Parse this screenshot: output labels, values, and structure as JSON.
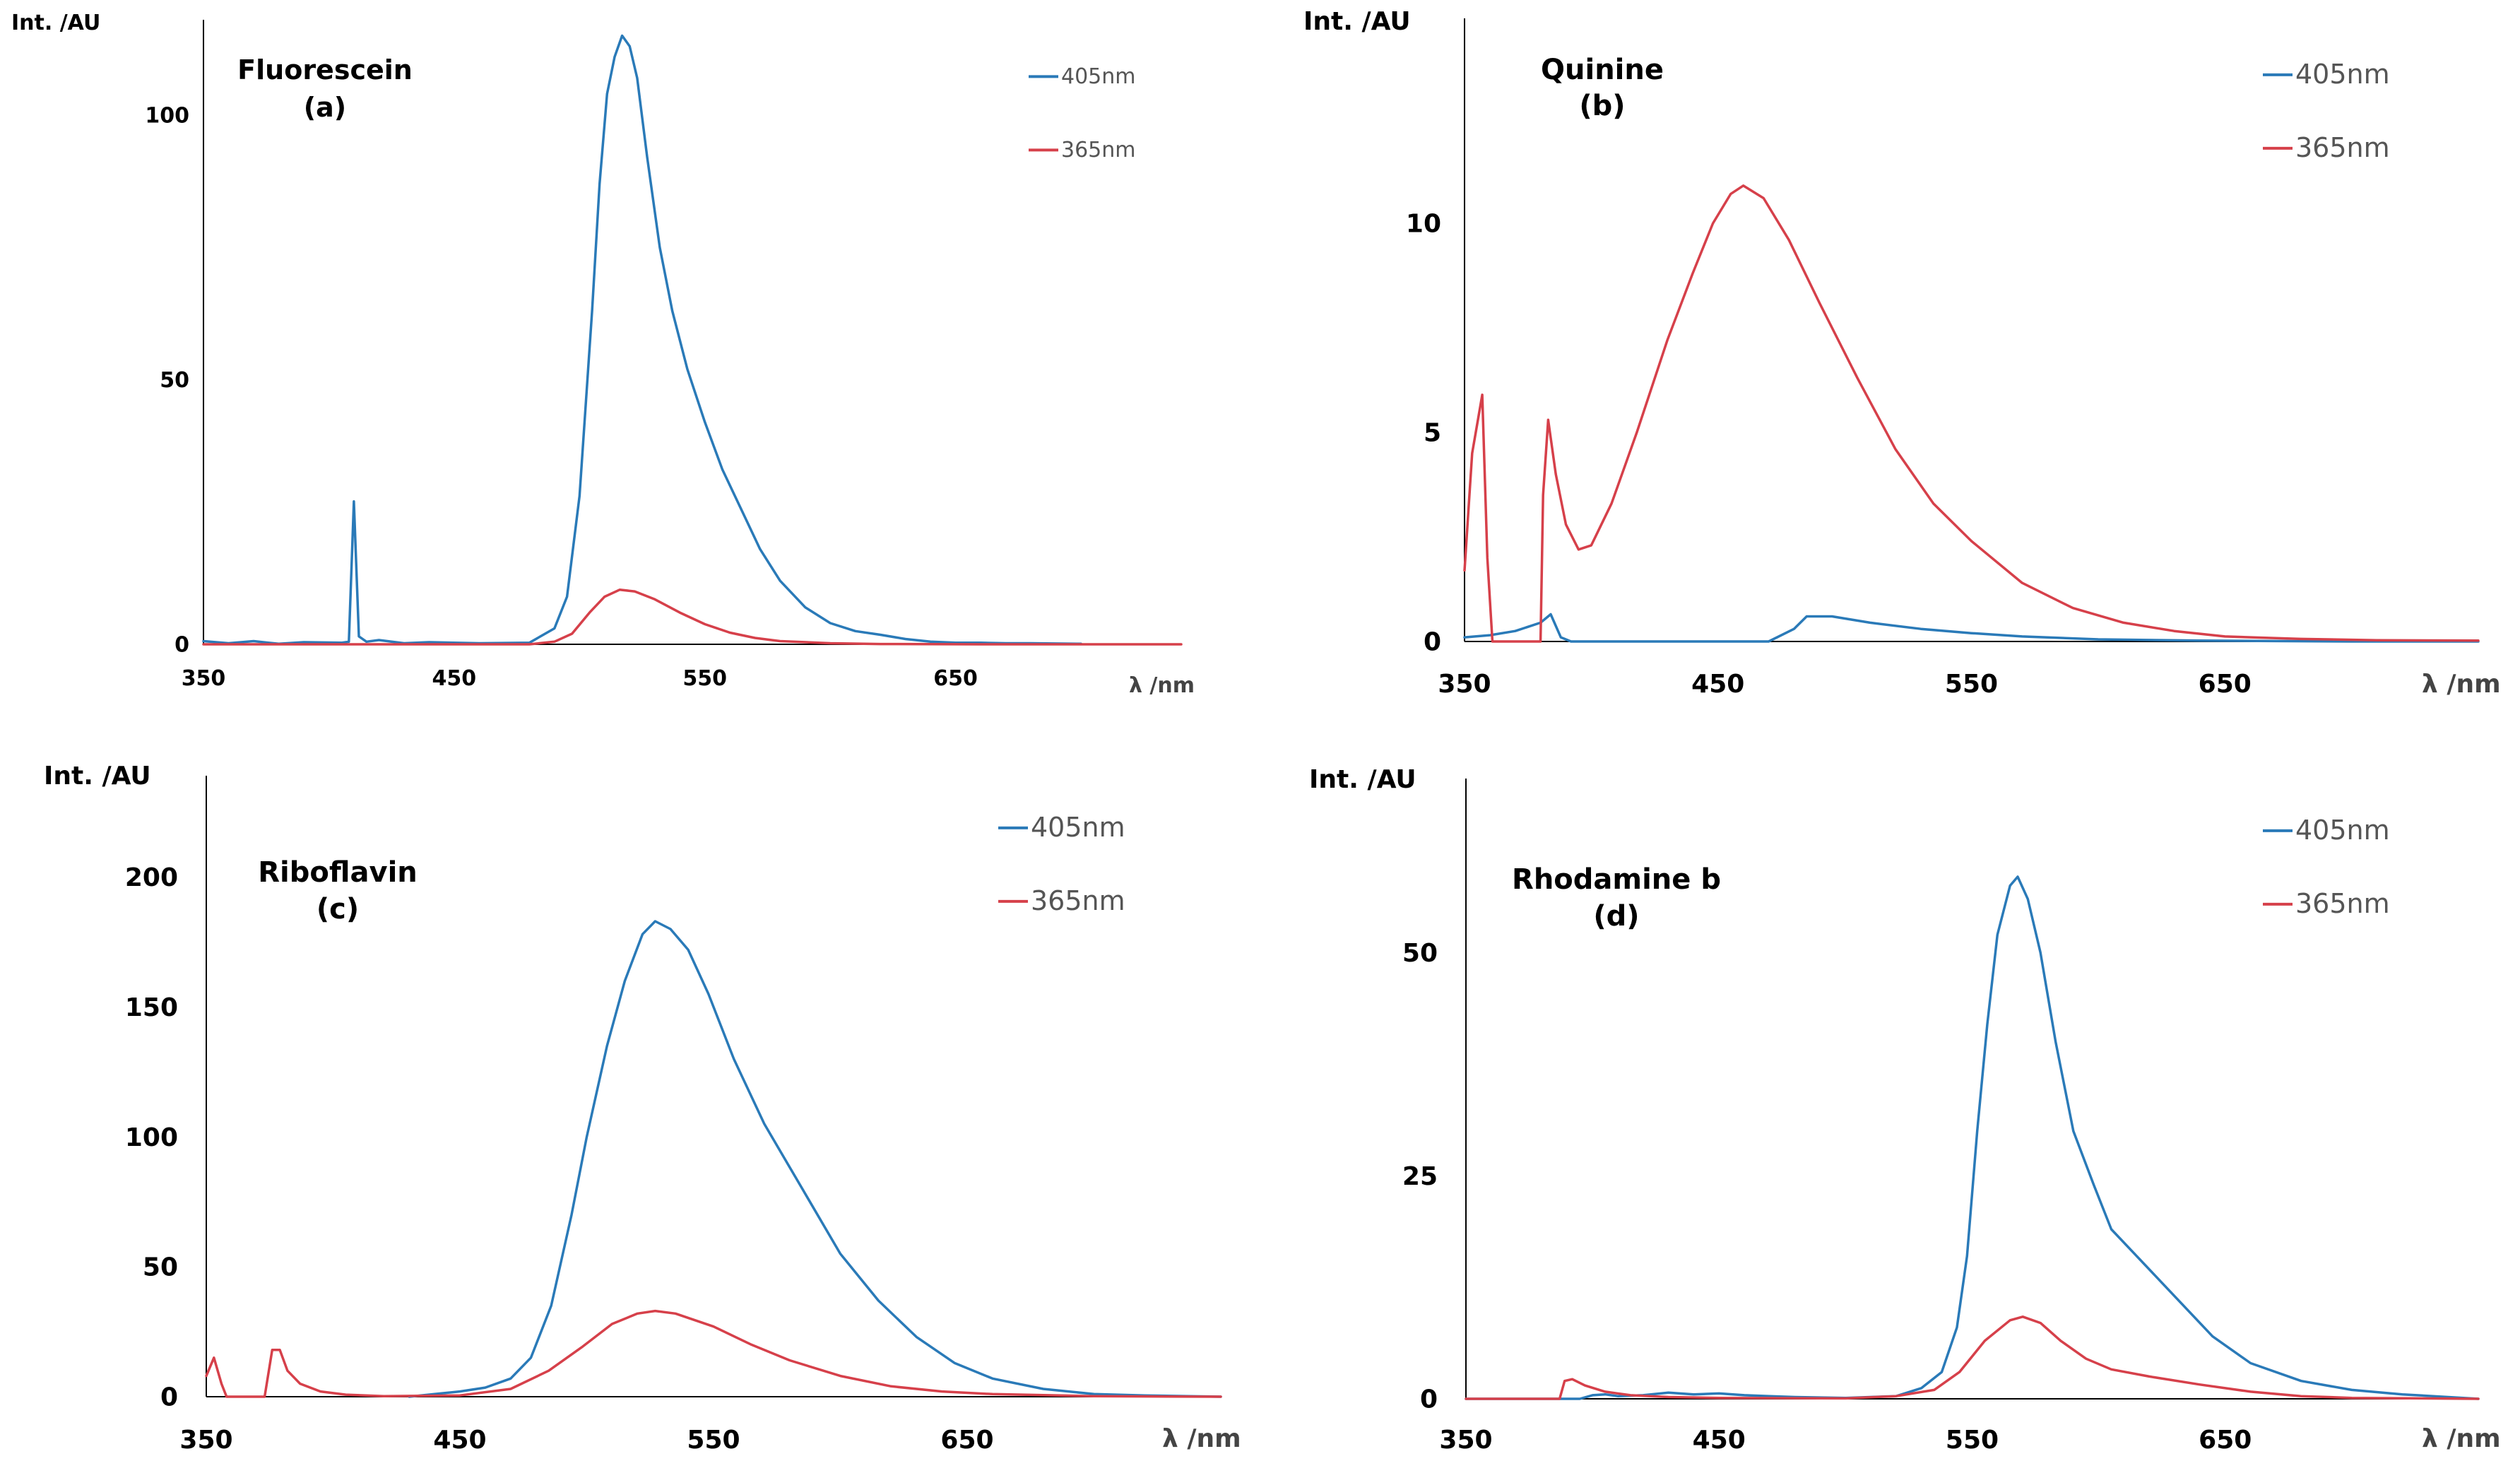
{
  "chart_data": [
    {
      "type": "line",
      "panel": "a",
      "title": "Fluorescein",
      "panel_label": "(a)",
      "ylabel": "Int. /AU",
      "xlabel": "λ /nm",
      "xlim": [
        350,
        740
      ],
      "ylim": [
        0,
        118
      ],
      "xticks": [
        350,
        450,
        550,
        650
      ],
      "yticks": [
        0,
        50,
        100
      ],
      "legend": {
        "placement": "top-right",
        "entries": [
          "405nm",
          "365nm"
        ]
      },
      "series": [
        {
          "name": "405nm",
          "color": "#2a7ab8",
          "points": [
            [
              350,
              0.6
            ],
            [
              360,
              0.2
            ],
            [
              370,
              0.6
            ],
            [
              380,
              0.1
            ],
            [
              390,
              0.4
            ],
            [
              405,
              0.3
            ],
            [
              408,
              0.5
            ],
            [
              410,
              27
            ],
            [
              412,
              1.5
            ],
            [
              415,
              0.5
            ],
            [
              420,
              0.8
            ],
            [
              430,
              0.2
            ],
            [
              440,
              0.4
            ],
            [
              460,
              0.2
            ],
            [
              480,
              0.3
            ],
            [
              490,
              3
            ],
            [
              495,
              9
            ],
            [
              500,
              28
            ],
            [
              505,
              63
            ],
            [
              508,
              87
            ],
            [
              511,
              104
            ],
            [
              514,
              111
            ],
            [
              517,
              115
            ],
            [
              520,
              113
            ],
            [
              523,
              107
            ],
            [
              527,
              92
            ],
            [
              532,
              75
            ],
            [
              537,
              63
            ],
            [
              543,
              52
            ],
            [
              550,
              42
            ],
            [
              557,
              33
            ],
            [
              565,
              25
            ],
            [
              572,
              18
            ],
            [
              580,
              12
            ],
            [
              590,
              7
            ],
            [
              600,
              4
            ],
            [
              610,
              2.5
            ],
            [
              620,
              1.8
            ],
            [
              630,
              1
            ],
            [
              640,
              0.5
            ],
            [
              650,
              0.3
            ],
            [
              660,
              0.3
            ],
            [
              670,
              0.2
            ],
            [
              680,
              0.2
            ],
            [
              700,
              0.1
            ]
          ]
        },
        {
          "name": "365nm",
          "color": "#d6404a",
          "points": [
            [
              350,
              0
            ],
            [
              480,
              0
            ],
            [
              490,
              0.5
            ],
            [
              497,
              2
            ],
            [
              504,
              6
            ],
            [
              510,
              9
            ],
            [
              516,
              10.3
            ],
            [
              522,
              10
            ],
            [
              530,
              8.5
            ],
            [
              540,
              6
            ],
            [
              550,
              3.8
            ],
            [
              560,
              2.2
            ],
            [
              570,
              1.2
            ],
            [
              580,
              0.6
            ],
            [
              600,
              0.2
            ],
            [
              620,
              0.05
            ],
            [
              660,
              0
            ],
            [
              740,
              0
            ]
          ]
        }
      ]
    },
    {
      "type": "line",
      "panel": "b",
      "title": "Quinine",
      "panel_label": "(b)",
      "ylabel": "Int. /AU",
      "xlabel": "λ /nm",
      "xlim": [
        350,
        750
      ],
      "ylim": [
        0,
        14.9
      ],
      "xticks": [
        350,
        450,
        550,
        650
      ],
      "yticks": [
        0,
        5,
        10
      ],
      "legend": {
        "placement": "top-right",
        "entries": [
          "405nm",
          "365nm"
        ]
      },
      "series": [
        {
          "name": "405nm",
          "color": "#2a7ab8",
          "points": [
            [
              350,
              0.1
            ],
            [
              360,
              0.15
            ],
            [
              370,
              0.25
            ],
            [
              375,
              0.35
            ],
            [
              380,
              0.45
            ],
            [
              384,
              0.65
            ],
            [
              388,
              0.1
            ],
            [
              392,
              0
            ],
            [
              470,
              0
            ],
            [
              480,
              0.3
            ],
            [
              485,
              0.6
            ],
            [
              495,
              0.6
            ],
            [
              510,
              0.45
            ],
            [
              530,
              0.3
            ],
            [
              550,
              0.2
            ],
            [
              570,
              0.12
            ],
            [
              600,
              0.05
            ],
            [
              640,
              0.02
            ],
            [
              700,
              0
            ],
            [
              750,
              0
            ]
          ]
        },
        {
          "name": "365nm",
          "color": "#d6404a",
          "points": [
            [
              350,
              1.7
            ],
            [
              353,
              4.5
            ],
            [
              357,
              5.9
            ],
            [
              359,
              2
            ],
            [
              361,
              0
            ],
            [
              380,
              0
            ],
            [
              381,
              3.5
            ],
            [
              383,
              5.3
            ],
            [
              386,
              4
            ],
            [
              390,
              2.8
            ],
            [
              395,
              2.2
            ],
            [
              400,
              2.3
            ],
            [
              408,
              3.3
            ],
            [
              418,
              5
            ],
            [
              430,
              7.2
            ],
            [
              440,
              8.8
            ],
            [
              448,
              10
            ],
            [
              455,
              10.7
            ],
            [
              460,
              10.9
            ],
            [
              468,
              10.6
            ],
            [
              478,
              9.6
            ],
            [
              490,
              8.1
            ],
            [
              505,
              6.3
            ],
            [
              520,
              4.6
            ],
            [
              535,
              3.3
            ],
            [
              550,
              2.4
            ],
            [
              570,
              1.4
            ],
            [
              590,
              0.8
            ],
            [
              610,
              0.45
            ],
            [
              630,
              0.25
            ],
            [
              650,
              0.12
            ],
            [
              680,
              0.06
            ],
            [
              710,
              0.03
            ],
            [
              750,
              0.02
            ]
          ]
        }
      ]
    },
    {
      "type": "line",
      "panel": "c",
      "title": "Riboflavin",
      "panel_label": "(c)",
      "ylabel": "Int. /AU",
      "xlabel": "λ /nm",
      "xlim": [
        350,
        750
      ],
      "ylim": [
        0,
        239
      ],
      "xticks": [
        350,
        450,
        550,
        650
      ],
      "yticks": [
        0,
        50,
        100,
        150,
        200
      ],
      "legend": {
        "placement": "top-right",
        "entries": [
          "405nm",
          "365nm"
        ]
      },
      "series": [
        {
          "name": "405nm",
          "color": "#2a7ab8",
          "points": [
            [
              430,
              0
            ],
            [
              440,
              1
            ],
            [
              450,
              2
            ],
            [
              460,
              3.5
            ],
            [
              470,
              7
            ],
            [
              478,
              15
            ],
            [
              486,
              35
            ],
            [
              494,
              70
            ],
            [
              500,
              100
            ],
            [
              508,
              135
            ],
            [
              515,
              160
            ],
            [
              522,
              178
            ],
            [
              527,
              183
            ],
            [
              533,
              180
            ],
            [
              540,
              172
            ],
            [
              548,
              155
            ],
            [
              558,
              130
            ],
            [
              570,
              105
            ],
            [
              585,
              80
            ],
            [
              600,
              55
            ],
            [
              615,
              37
            ],
            [
              630,
              23
            ],
            [
              645,
              13
            ],
            [
              660,
              7
            ],
            [
              680,
              3
            ],
            [
              700,
              1
            ],
            [
              720,
              0.5
            ],
            [
              750,
              0
            ]
          ]
        },
        {
          "name": "365nm",
          "color": "#d6404a",
          "points": [
            [
              350,
              8
            ],
            [
              353,
              15
            ],
            [
              356,
              5
            ],
            [
              358,
              0
            ],
            [
              373,
              0
            ],
            [
              376,
              18
            ],
            [
              379,
              18
            ],
            [
              382,
              10
            ],
            [
              387,
              5
            ],
            [
              395,
              2
            ],
            [
              405,
              0.8
            ],
            [
              420,
              0.2
            ],
            [
              450,
              0.5
            ],
            [
              470,
              3
            ],
            [
              485,
              10
            ],
            [
              498,
              19
            ],
            [
              510,
              28
            ],
            [
              520,
              32
            ],
            [
              527,
              33
            ],
            [
              535,
              32
            ],
            [
              550,
              27
            ],
            [
              565,
              20
            ],
            [
              580,
              14
            ],
            [
              600,
              8
            ],
            [
              620,
              4
            ],
            [
              640,
              2
            ],
            [
              660,
              1
            ],
            [
              700,
              0.2
            ],
            [
              750,
              0
            ]
          ]
        }
      ]
    },
    {
      "type": "line",
      "panel": "d",
      "title": "Rhodamine b",
      "panel_label": "(d)",
      "ylabel": "Int. /AU",
      "xlabel": "λ /nm",
      "xlim": [
        350,
        750
      ],
      "ylim": [
        0,
        69.5
      ],
      "xticks": [
        350,
        450,
        550,
        650
      ],
      "yticks": [
        0,
        25,
        50
      ],
      "legend": {
        "placement": "top-right",
        "entries": [
          "405nm",
          "365nm"
        ]
      },
      "series": [
        {
          "name": "405nm",
          "color": "#2a7ab8",
          "points": [
            [
              350,
              0
            ],
            [
              395,
              0
            ],
            [
              400,
              0.4
            ],
            [
              405,
              0.5
            ],
            [
              410,
              0.3
            ],
            [
              420,
              0.4
            ],
            [
              430,
              0.7
            ],
            [
              440,
              0.5
            ],
            [
              450,
              0.6
            ],
            [
              460,
              0.4
            ],
            [
              470,
              0.3
            ],
            [
              480,
              0.2
            ],
            [
              500,
              0.1
            ],
            [
              520,
              0.3
            ],
            [
              530,
              1.2
            ],
            [
              538,
              3
            ],
            [
              544,
              8
            ],
            [
              548,
              16
            ],
            [
              552,
              30
            ],
            [
              556,
              42
            ],
            [
              560,
              52
            ],
            [
              565,
              57.5
            ],
            [
              568,
              58.5
            ],
            [
              572,
              56
            ],
            [
              577,
              50
            ],
            [
              583,
              40
            ],
            [
              590,
              30
            ],
            [
              598,
              24
            ],
            [
              605,
              19
            ],
            [
              615,
              16
            ],
            [
              625,
              13
            ],
            [
              635,
              10
            ],
            [
              645,
              7
            ],
            [
              660,
              4
            ],
            [
              680,
              2
            ],
            [
              700,
              1
            ],
            [
              720,
              0.5
            ],
            [
              750,
              0
            ]
          ]
        },
        {
          "name": "365nm",
          "color": "#d6404a",
          "points": [
            [
              350,
              0
            ],
            [
              387,
              0
            ],
            [
              389,
              2
            ],
            [
              392,
              2.2
            ],
            [
              397,
              1.5
            ],
            [
              405,
              0.8
            ],
            [
              415,
              0.4
            ],
            [
              430,
              0.2
            ],
            [
              450,
              0.1
            ],
            [
              500,
              0.05
            ],
            [
              520,
              0.3
            ],
            [
              535,
              1
            ],
            [
              545,
              3
            ],
            [
              555,
              6.5
            ],
            [
              565,
              8.8
            ],
            [
              570,
              9.2
            ],
            [
              577,
              8.5
            ],
            [
              585,
              6.5
            ],
            [
              595,
              4.5
            ],
            [
              605,
              3.3
            ],
            [
              620,
              2.5
            ],
            [
              640,
              1.6
            ],
            [
              660,
              0.8
            ],
            [
              680,
              0.3
            ],
            [
              700,
              0.1
            ],
            [
              750,
              0
            ]
          ]
        }
      ]
    }
  ]
}
